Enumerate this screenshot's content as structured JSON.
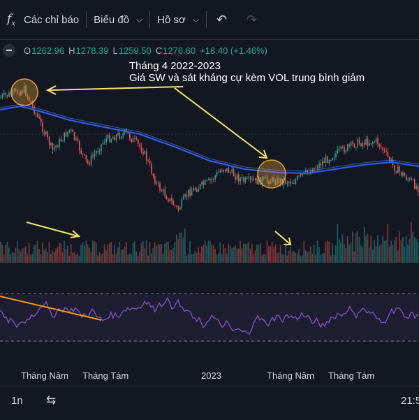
{
  "toolbar": {
    "indicators_icon": "function-fx-icon",
    "indicators_label": "Các chỉ báo",
    "chart_type_label": "Biểu đồ",
    "profile_label": "Hồ sơ",
    "undo_icon": "undo-icon",
    "redo_icon": "redo-icon"
  },
  "legend": {
    "open_key": "O",
    "open": "1262.96",
    "high_key": "H",
    "high": "1278.39",
    "low_key": "L",
    "low": "1259.50",
    "close_key": "C",
    "close": "1276.60",
    "change": "+18.40 (+1.46%)"
  },
  "annotation": {
    "line1": "Tháng 4 2022-2023",
    "line2": "Giá SW và sát kháng cự kèm VOL trung bình giảm"
  },
  "x_axis": [
    "Tháng Năm",
    "Tháng Tám",
    "2023",
    "Tháng Năm",
    "Tháng Tám"
  ],
  "bottom": {
    "interval": "1n",
    "date_range_icon": "calendar-range-icon",
    "time": "21:5"
  },
  "colors": {
    "background": "#131722",
    "up": "#26a69a",
    "down": "#ef5350",
    "ma": "#2962ff",
    "rsi": "#7e57c2",
    "annotation_arrow": "#f5e663",
    "trendline": "#ff9800",
    "highlight_circle": "#e0a030"
  }
}
